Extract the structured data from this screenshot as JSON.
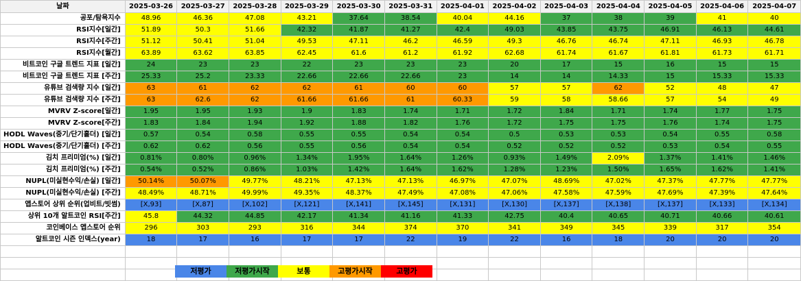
{
  "colors": {
    "b": "#4a86e8",
    "g": "#3fa84b",
    "y": "#ffff00",
    "o": "#ff9900",
    "r": "#ff0000"
  },
  "header": {
    "label": "날짜",
    "dates": [
      "2025-03-26",
      "2025-03-27",
      "2025-03-28",
      "2025-03-29",
      "2025-03-30",
      "2025-03-31",
      "2025-04-01",
      "2025-04-02",
      "2025-04-03",
      "2025-04-04",
      "2025-04-05",
      "2025-04-06",
      "2025-04-07"
    ]
  },
  "rows": [
    {
      "label": "공포/탐욕지수",
      "values": [
        "48.96",
        "46.36",
        "47.08",
        "43.21",
        "37.64",
        "38.54",
        "40.04",
        "44.16",
        "37",
        "38",
        "39",
        "41",
        "40"
      ],
      "colors": [
        "y",
        "y",
        "y",
        "y",
        "g",
        "g",
        "y",
        "y",
        "g",
        "g",
        "g",
        "y",
        "y"
      ]
    },
    {
      "label": "RSI지수[일간]",
      "values": [
        "51.89",
        "50.3",
        "51.66",
        "42.32",
        "41.87",
        "41.27",
        "42.4",
        "49.03",
        "43.85",
        "43.75",
        "46.91",
        "46.13",
        "44.61"
      ],
      "colors": [
        "y",
        "y",
        "y",
        "g",
        "g",
        "g",
        "g",
        "g",
        "g",
        "g",
        "g",
        "g",
        "g"
      ]
    },
    {
      "label": "RSI지수[주간]",
      "values": [
        "51.12",
        "50.41",
        "51.04",
        "49.53",
        "47.11",
        "46.2",
        "46.59",
        "49.3",
        "46.76",
        "46.74",
        "47.11",
        "46.93",
        "46.78"
      ],
      "colors": [
        "y",
        "y",
        "y",
        "y",
        "y",
        "y",
        "y",
        "y",
        "y",
        "y",
        "y",
        "y",
        "y"
      ]
    },
    {
      "label": "RSI지수[월간]",
      "values": [
        "63.89",
        "63.62",
        "63.85",
        "62.45",
        "61.6",
        "61.2",
        "61.92",
        "62.68",
        "61.74",
        "61.67",
        "61.81",
        "61.73",
        "61.71"
      ],
      "colors": [
        "y",
        "y",
        "y",
        "y",
        "y",
        "y",
        "y",
        "y",
        "y",
        "y",
        "y",
        "y",
        "y"
      ]
    },
    {
      "label": "비트코인 구글 트렌드 지표 [일간]",
      "values": [
        "24",
        "23",
        "23",
        "22",
        "23",
        "23",
        "23",
        "20",
        "17",
        "15",
        "16",
        "15",
        "15"
      ],
      "colors": [
        "g",
        "g",
        "g",
        "g",
        "g",
        "g",
        "g",
        "g",
        "g",
        "g",
        "g",
        "g",
        "g"
      ]
    },
    {
      "label": "비트코인 구글 트렌드 지표 [주간]",
      "values": [
        "25.33",
        "25.2",
        "23.33",
        "22.66",
        "22.66",
        "22.66",
        "23",
        "14",
        "14",
        "14.33",
        "15",
        "15.33",
        "15.33"
      ],
      "colors": [
        "g",
        "g",
        "g",
        "g",
        "g",
        "g",
        "g",
        "g",
        "g",
        "g",
        "g",
        "g",
        "g"
      ]
    },
    {
      "label": "유튜브 검색량 지수 [일간]",
      "values": [
        "63",
        "61",
        "62",
        "62",
        "61",
        "60",
        "60",
        "57",
        "57",
        "62",
        "52",
        "48",
        "47"
      ],
      "colors": [
        "o",
        "o",
        "o",
        "o",
        "o",
        "o",
        "o",
        "y",
        "y",
        "o",
        "y",
        "y",
        "y"
      ]
    },
    {
      "label": "유튜브 검색량 지수 [주간]",
      "values": [
        "63",
        "62.6",
        "62",
        "61.66",
        "61.66",
        "61",
        "60.33",
        "59",
        "58",
        "58.66",
        "57",
        "54",
        "49"
      ],
      "colors": [
        "o",
        "o",
        "o",
        "o",
        "o",
        "o",
        "o",
        "y",
        "y",
        "y",
        "y",
        "y",
        "y"
      ]
    },
    {
      "label": "MVRV Z-score[일간]",
      "values": [
        "1.95",
        "1.95",
        "1.93",
        "1.9",
        "1.83",
        "1.74",
        "1.71",
        "1.72",
        "1.84",
        "1.71",
        "1.74",
        "1.77",
        "1.75"
      ],
      "colors": [
        "g",
        "g",
        "g",
        "g",
        "g",
        "g",
        "g",
        "g",
        "g",
        "g",
        "g",
        "g",
        "g"
      ]
    },
    {
      "label": "MVRV Z-score[주간]",
      "values": [
        "1.83",
        "1.84",
        "1.94",
        "1.92",
        "1.88",
        "1.82",
        "1.76",
        "1.72",
        "1.75",
        "1.75",
        "1.76",
        "1.74",
        "1.75"
      ],
      "colors": [
        "g",
        "g",
        "g",
        "g",
        "g",
        "g",
        "g",
        "g",
        "g",
        "g",
        "g",
        "g",
        "g"
      ]
    },
    {
      "label": "HODL Waves(중기/단기홀더) [일간]",
      "values": [
        "0.57",
        "0.54",
        "0.58",
        "0.55",
        "0.55",
        "0.54",
        "0.54",
        "0.5",
        "0.53",
        "0.53",
        "0.54",
        "0.55",
        "0.58"
      ],
      "colors": [
        "g",
        "g",
        "g",
        "g",
        "g",
        "g",
        "g",
        "g",
        "g",
        "g",
        "g",
        "g",
        "g"
      ]
    },
    {
      "label": "HODL Waves(중기/단기홀더) [주간]",
      "values": [
        "0.62",
        "0.62",
        "0.56",
        "0.55",
        "0.56",
        "0.54",
        "0.54",
        "0.52",
        "0.52",
        "0.52",
        "0.53",
        "0.54",
        "0.55"
      ],
      "colors": [
        "g",
        "g",
        "g",
        "g",
        "g",
        "g",
        "g",
        "g",
        "g",
        "g",
        "g",
        "g",
        "g"
      ]
    },
    {
      "label": "김치 프리미엄(%) [일간]",
      "values": [
        "0.81%",
        "0.80%",
        "0.96%",
        "1.34%",
        "1.95%",
        "1.64%",
        "1.26%",
        "0.93%",
        "1.49%",
        "2.09%",
        "1.37%",
        "1.41%",
        "1.46%"
      ],
      "colors": [
        "g",
        "g",
        "g",
        "g",
        "g",
        "g",
        "g",
        "g",
        "g",
        "y",
        "g",
        "g",
        "g"
      ]
    },
    {
      "label": "김치 프리미엄(%) [주간]",
      "values": [
        "0.54%",
        "0.52%",
        "0.86%",
        "1.03%",
        "1.42%",
        "1.64%",
        "1.62%",
        "1.28%",
        "1.23%",
        "1.50%",
        "1.65%",
        "1.62%",
        "1.41%"
      ],
      "colors": [
        "g",
        "g",
        "g",
        "g",
        "g",
        "g",
        "g",
        "g",
        "g",
        "g",
        "g",
        "g",
        "g"
      ]
    },
    {
      "label": "NUPL(미실현수익/손실) [일간]",
      "values": [
        "50.14%",
        "50.07%",
        "49.77%",
        "48.21%",
        "47.13%",
        "47.13%",
        "46.97%",
        "47.07%",
        "48.69%",
        "47.02%",
        "47.37%",
        "47.77%",
        "47.77%"
      ],
      "colors": [
        "o",
        "o",
        "y",
        "y",
        "y",
        "y",
        "y",
        "y",
        "y",
        "y",
        "y",
        "y",
        "y"
      ]
    },
    {
      "label": "NUPL(미실현수익/손실) [주간]",
      "values": [
        "48.49%",
        "48.71%",
        "49.99%",
        "49.35%",
        "48.37%",
        "47.49%",
        "47.08%",
        "47.06%",
        "47.58%",
        "47.59%",
        "47.69%",
        "47.39%",
        "47.64%"
      ],
      "colors": [
        "y",
        "y",
        "y",
        "y",
        "y",
        "y",
        "y",
        "y",
        "y",
        "y",
        "y",
        "y",
        "y"
      ]
    },
    {
      "label": "앱스토어 상위 순위(업비트/빗썸)",
      "values": [
        "[X,93]",
        "[X,87]",
        "[X,102]",
        "[X,121]",
        "[X,141]",
        "[X,145]",
        "[X,131]",
        "[X,130]",
        "[X,137]",
        "[X,138]",
        "[X,137]",
        "[X,133]",
        "[X,134]"
      ],
      "colors": [
        "b",
        "b",
        "b",
        "b",
        "b",
        "b",
        "b",
        "b",
        "b",
        "b",
        "b",
        "b",
        "b"
      ]
    },
    {
      "label": "상위 10개 알트코인 RSI[주간]",
      "values": [
        "45.8",
        "44.32",
        "44.85",
        "42.17",
        "41.34",
        "41.16",
        "41.33",
        "42.75",
        "40.4",
        "40.65",
        "40.71",
        "40.66",
        "40.61"
      ],
      "colors": [
        "y",
        "g",
        "g",
        "g",
        "g",
        "g",
        "g",
        "g",
        "g",
        "g",
        "g",
        "g",
        "g"
      ]
    },
    {
      "label": "코인베이스 앱스토어 순위",
      "values": [
        "296",
        "303",
        "293",
        "316",
        "344",
        "374",
        "370",
        "341",
        "349",
        "345",
        "339",
        "317",
        "354"
      ],
      "colors": [
        "y",
        "y",
        "y",
        "y",
        "y",
        "y",
        "y",
        "y",
        "y",
        "y",
        "y",
        "y",
        "y"
      ]
    },
    {
      "label": "알트코인 시즌 인덱스(year)",
      "values": [
        "18",
        "17",
        "16",
        "17",
        "17",
        "22",
        "19",
        "22",
        "16",
        "18",
        "20",
        "20",
        "20"
      ],
      "colors": [
        "b",
        "b",
        "b",
        "b",
        "b",
        "b",
        "b",
        "b",
        "b",
        "b",
        "b",
        "b",
        "b"
      ]
    }
  ],
  "legend": [
    {
      "label": "저평가",
      "color": "b"
    },
    {
      "label": "저평가시작",
      "color": "g"
    },
    {
      "label": "보통",
      "color": "y"
    },
    {
      "label": "고평가시작",
      "color": "o"
    },
    {
      "label": "고평가",
      "color": "r"
    }
  ]
}
